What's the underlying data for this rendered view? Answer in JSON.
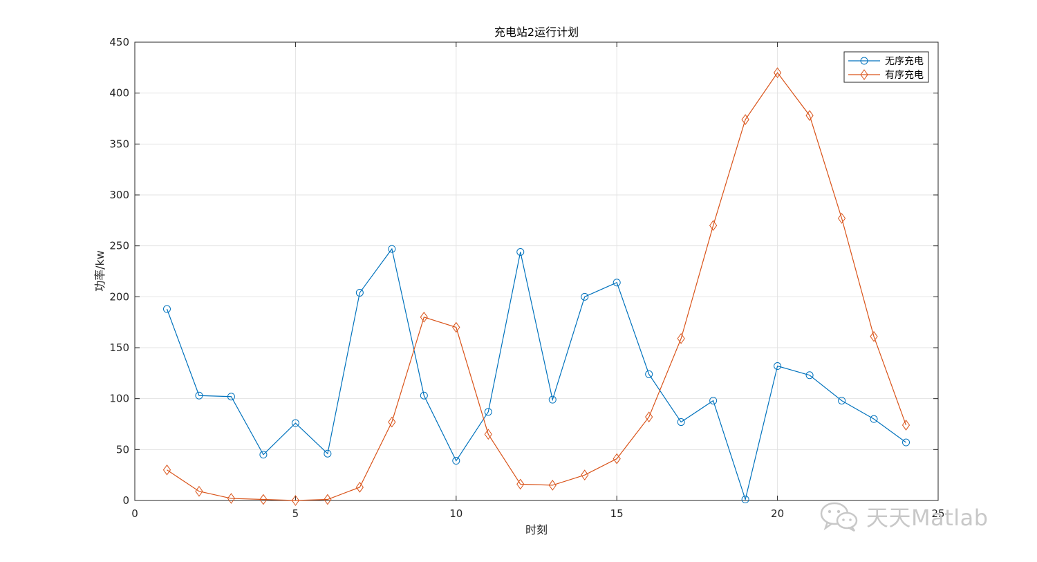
{
  "chart_data": {
    "type": "line",
    "title": "充电站2运行计划",
    "xlabel": "时刻",
    "ylabel": "功率/kw",
    "xlim": [
      0,
      25
    ],
    "ylim": [
      0,
      450
    ],
    "xticks": [
      0,
      5,
      10,
      15,
      20,
      25
    ],
    "yticks": [
      0,
      50,
      100,
      150,
      200,
      250,
      300,
      350,
      400,
      450
    ],
    "xtick_labels": [
      "0",
      "5",
      "10",
      "15",
      "20",
      "25"
    ],
    "ytick_labels": [
      "0",
      "50",
      "100",
      "150",
      "200",
      "250",
      "300",
      "350",
      "400",
      "450"
    ],
    "grid": true,
    "legend_position": "top-right",
    "x": [
      1,
      2,
      3,
      4,
      5,
      6,
      7,
      8,
      9,
      10,
      11,
      12,
      13,
      14,
      15,
      16,
      17,
      18,
      19,
      20,
      21,
      22,
      23,
      24
    ],
    "series": [
      {
        "name": "无序充电",
        "color": "#0072BD",
        "marker": "circle",
        "values": [
          188,
          103,
          102,
          45,
          76,
          46,
          204,
          247,
          103,
          39,
          87,
          244,
          99,
          200,
          214,
          124,
          77,
          98,
          1,
          132,
          123,
          98,
          80,
          57
        ]
      },
      {
        "name": "有序充电",
        "color": "#D95319",
        "marker": "diamond",
        "values": [
          30,
          9,
          2,
          1,
          0,
          1,
          13,
          77,
          180,
          170,
          65,
          16,
          15,
          25,
          41,
          82,
          159,
          270,
          374,
          420,
          378,
          277,
          161,
          74
        ]
      }
    ]
  },
  "watermark": {
    "text": "天天Matlab",
    "icon": "wechat-logo-icon"
  }
}
